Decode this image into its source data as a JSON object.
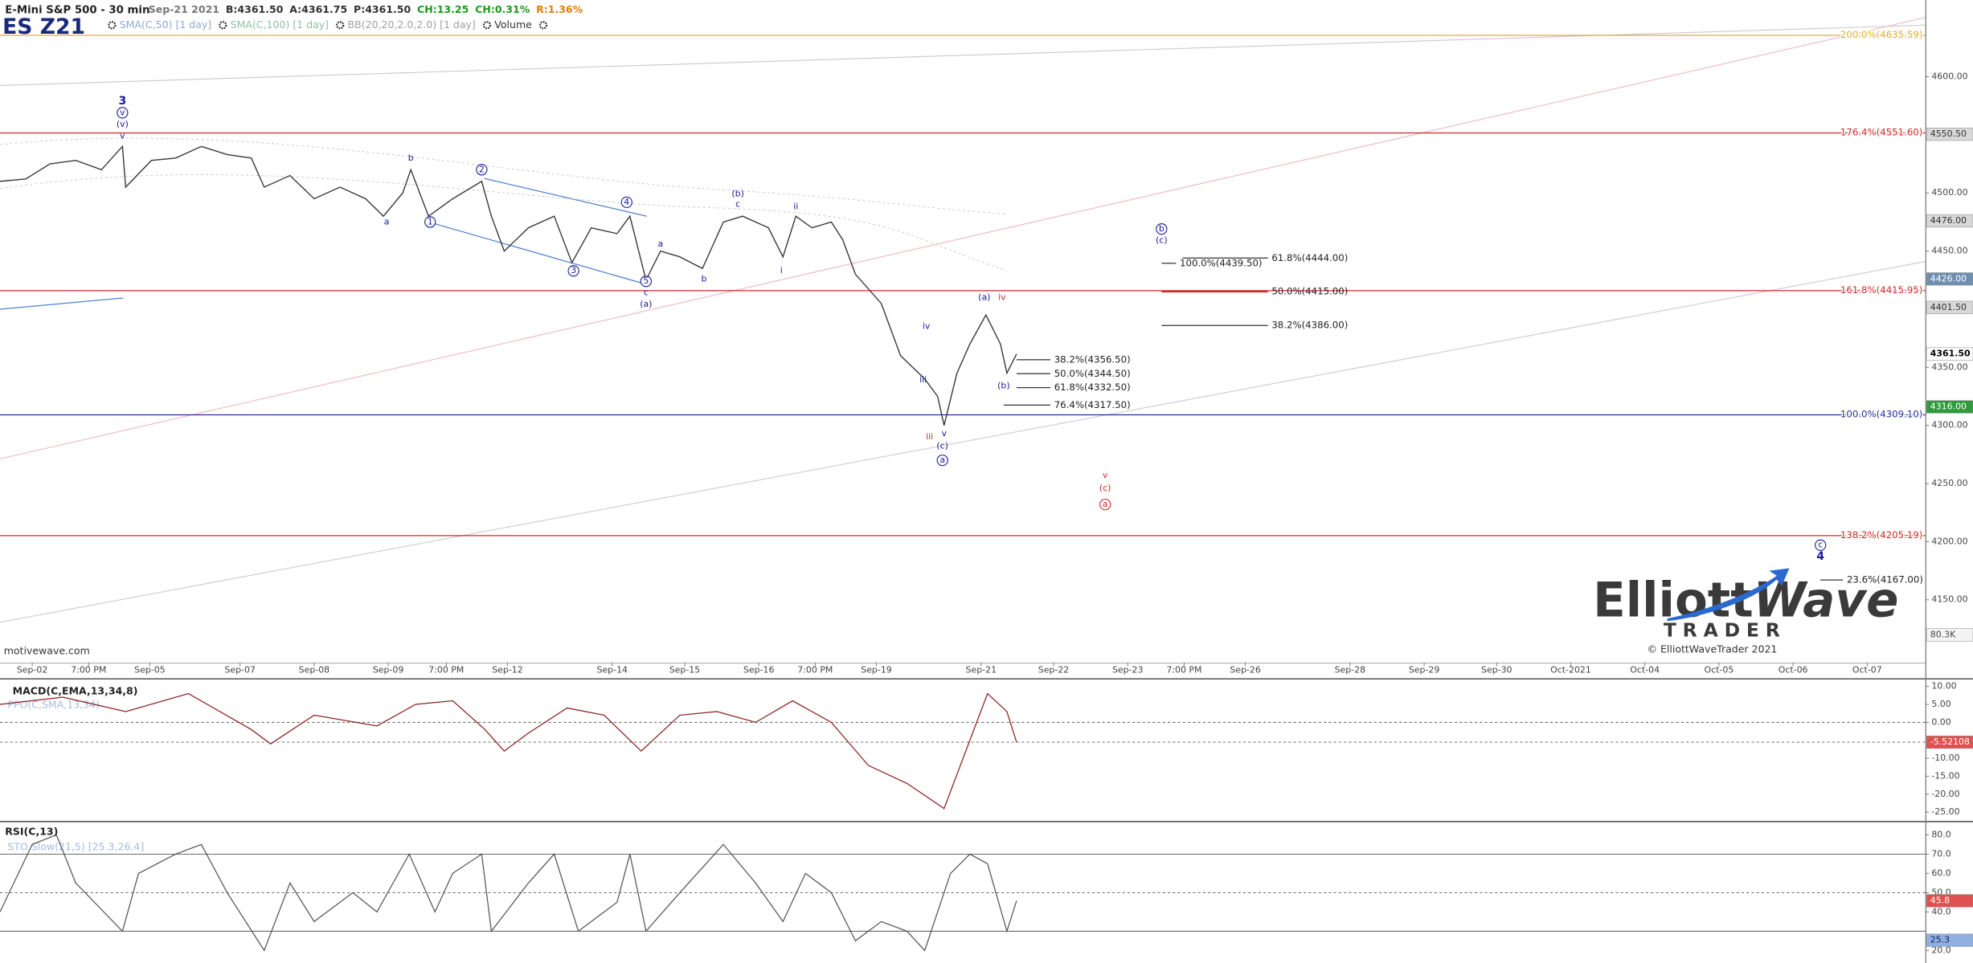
{
  "quote": [
    {
      "text": "Sep-21 2021",
      "color": "#777777"
    },
    {
      "text": "B:4361.50",
      "color": "#333333"
    },
    {
      "text": "A:4361.75",
      "color": "#333333"
    },
    {
      "text": "P:4361.50",
      "color": "#333333"
    },
    {
      "text": "CH:13.25",
      "color": "#1a9a1a"
    },
    {
      "text": "CH:0.31%",
      "color": "#1a9a1a"
    },
    {
      "text": "R:1.36%",
      "color": "#e08000"
    }
  ],
  "indicators": [
    {
      "text": "SMA(C,50) [1 day]",
      "color": "#8fa8d8"
    },
    {
      "text": "SMA(C,100) [1 day]",
      "color": "#8fc0a8"
    },
    {
      "text": "BB(20,20,2.0,2.0) [1 day]",
      "color": "#a0a0a0"
    },
    {
      "text": "Volume",
      "color": "#333333"
    }
  ],
  "source": "motivewave.com",
  "copyright": "© ElliottWaveTrader 2021",
  "logo": {
    "first": "Elliott",
    "second": "Wave",
    "third": "TRADER"
  },
  "chart_data": [
    {
      "type": "line",
      "title": "E-Mini S&P 500 - 30 min",
      "xlim": [
        0,
        1195
      ],
      "xticks": [
        {
          "value": 20,
          "label": "Sep-02"
        },
        {
          "value": 55,
          "label": "7:00 PM"
        },
        {
          "value": 93,
          "label": "Sep-05"
        },
        {
          "value": 149,
          "label": "Sep-07"
        },
        {
          "value": 195,
          "label": "Sep-08"
        },
        {
          "value": 241,
          "label": "Sep-09"
        },
        {
          "value": 277,
          "label": "7:00 PM"
        },
        {
          "value": 315,
          "label": "Sep-12"
        },
        {
          "value": 380,
          "label": "Sep-14"
        },
        {
          "value": 425,
          "label": "Sep-15"
        },
        {
          "value": 471,
          "label": "Sep-16"
        },
        {
          "value": 506,
          "label": "7:00 PM"
        },
        {
          "value": 544,
          "label": "Sep-19"
        },
        {
          "value": 609,
          "label": "Sep-21"
        },
        {
          "value": 654,
          "label": "Sep-22"
        },
        {
          "value": 700,
          "label": "Sep-23"
        },
        {
          "value": 735,
          "label": "7:00 PM"
        },
        {
          "value": 773,
          "label": "Sep-26"
        },
        {
          "value": 838,
          "label": "Sep-28"
        },
        {
          "value": 884,
          "label": "Sep-29"
        },
        {
          "value": 929,
          "label": "Sep-30"
        },
        {
          "value": 975,
          "label": "Oct-2021"
        },
        {
          "value": 1021,
          "label": "Oct-04"
        },
        {
          "value": 1067,
          "label": "Oct-05"
        },
        {
          "value": 1113,
          "label": "Oct-06"
        },
        {
          "value": 1159,
          "label": "Oct-07"
        }
      ],
      "ylim": [
        4096,
        4666
      ],
      "yticks": [
        {
          "value": 4150,
          "label": "4150.00"
        },
        {
          "value": 4200,
          "label": "4200.00"
        },
        {
          "value": 4250,
          "label": "4250.00"
        },
        {
          "value": 4300,
          "label": "4300.00"
        },
        {
          "value": 4350,
          "label": "4350.00"
        },
        {
          "value": 4450,
          "label": "4450.00"
        },
        {
          "value": 4500,
          "label": "4500.00"
        },
        {
          "value": 4600,
          "label": "4600.00"
        }
      ],
      "x": [
        0,
        16,
        31,
        47,
        63,
        76,
        78,
        94,
        109,
        125,
        141,
        156,
        164,
        180,
        195,
        211,
        227,
        238,
        250,
        255,
        266,
        281,
        299,
        305,
        313,
        328,
        344,
        355,
        367,
        383,
        391,
        401,
        410,
        422,
        436,
        449,
        461,
        477,
        486,
        494,
        504,
        516,
        523,
        531,
        547,
        559,
        574,
        582,
        586,
        594,
        602,
        612,
        621,
        625,
        631
      ],
      "series": [
        {
          "name": "ES Z21",
          "color": "#3a3a3a",
          "values": [
            4510,
            4512,
            4525,
            4528,
            4520,
            4540,
            4505,
            4528,
            4530,
            4540,
            4533,
            4530,
            4505,
            4515,
            4495,
            4505,
            4495,
            4480,
            4500,
            4520,
            4480,
            4495,
            4510,
            4480,
            4450,
            4470,
            4480,
            4440,
            4470,
            4465,
            4480,
            4425,
            4450,
            4445,
            4435,
            4475,
            4480,
            4470,
            4445,
            4480,
            4470,
            4475,
            4460,
            4430,
            4405,
            4360,
            4340,
            4325,
            4300,
            4345,
            4370,
            4395,
            4370,
            4345,
            4361.5
          ]
        }
      ],
      "levels": [
        {
          "label": "200.0%(4635.59)",
          "value": 4635.59,
          "color": "#e0b020"
        },
        {
          "label": "176.4%(4551.60)",
          "value": 4551.6,
          "color": "#d02828"
        },
        {
          "label": "161.8%(4415.95)",
          "value": 4415.95,
          "color": "#d02828"
        },
        {
          "label": "100.0%(4309.10)",
          "value": 4309.1,
          "color": "#2a2a9a"
        },
        {
          "label": "138.2%(4205.19)",
          "value": 4205.19,
          "color": "#d02828"
        }
      ],
      "fibs": [
        {
          "label": "38.2%(4356.50)",
          "value": 4356.5,
          "x": 631,
          "x2": 652,
          "color": "#333333"
        },
        {
          "label": "50.0%(4344.50)",
          "value": 4344.5,
          "x": 631,
          "x2": 652,
          "color": "#333333"
        },
        {
          "label": "61.8%(4332.50)",
          "value": 4332.5,
          "x": 631,
          "x2": 652,
          "color": "#333333"
        },
        {
          "label": "76.4%(4317.50)",
          "value": 4317.5,
          "x": 623,
          "x2": 652,
          "color": "#333333"
        },
        {
          "label": "100.0%(4439.50)",
          "value": 4439.5,
          "x": 721,
          "x2": 730,
          "color": "#333333"
        },
        {
          "label": "61.8%(4444.00)",
          "value": 4444,
          "x": 734,
          "x2": 787,
          "color": "#333333"
        },
        {
          "label": "50.0%(4415.00)",
          "value": 4415,
          "x": 721,
          "x2": 787,
          "color": "#d02828"
        },
        {
          "label": "38.2%(4386.00)",
          "value": 4386,
          "x": 721,
          "x2": 787,
          "color": "#333333"
        },
        {
          "label": "23.6%(4167.00)",
          "value": 4167,
          "x": 1130,
          "x2": 1144,
          "color": "#333333"
        }
      ],
      "annotations": [
        {
          "text": "3",
          "x": 76,
          "y": 4579,
          "color": "#1a1a9a",
          "bold": true
        },
        {
          "text": "v",
          "x": 76,
          "y": 4569,
          "color": "#1a1a9a",
          "circled": true
        },
        {
          "text": "(v)",
          "x": 76,
          "y": 4559,
          "color": "#1a1a9a"
        },
        {
          "text": "v",
          "x": 76,
          "y": 4549,
          "color": "#1a1a9a"
        },
        {
          "text": "b",
          "x": 255,
          "y": 4530,
          "color": "#1a1a9a"
        },
        {
          "text": "a",
          "x": 240,
          "y": 4475,
          "color": "#1a1a9a"
        },
        {
          "text": "1",
          "x": 267,
          "y": 4475,
          "color": "#1a1a9a",
          "circled": true
        },
        {
          "text": "2",
          "x": 299,
          "y": 4520,
          "color": "#1a1a9a",
          "circled": true
        },
        {
          "text": "3",
          "x": 356,
          "y": 4433,
          "color": "#1a1a9a",
          "circled": true
        },
        {
          "text": "4",
          "x": 389,
          "y": 4492,
          "color": "#1a1a9a",
          "circled": true
        },
        {
          "text": "5",
          "x": 401,
          "y": 4424,
          "color": "#1a1a9a",
          "circled": true
        },
        {
          "text": "c",
          "x": 401,
          "y": 4414,
          "color": "#1a1a9a"
        },
        {
          "text": "(a)",
          "x": 401,
          "y": 4404,
          "color": "#1a1a9a"
        },
        {
          "text": "a",
          "x": 410,
          "y": 4456,
          "color": "#1a1a9a"
        },
        {
          "text": "b",
          "x": 437,
          "y": 4426,
          "color": "#1a1a9a"
        },
        {
          "text": "(b)",
          "x": 458,
          "y": 4499,
          "color": "#1a1a9a"
        },
        {
          "text": "c",
          "x": 458,
          "y": 4490,
          "color": "#1a1a9a"
        },
        {
          "text": "ii",
          "x": 494,
          "y": 4488,
          "color": "#1a1a9a"
        },
        {
          "text": "i",
          "x": 485,
          "y": 4433,
          "color": "#1a1a9a"
        },
        {
          "text": "iv",
          "x": 575,
          "y": 4385,
          "color": "#1a1a9a"
        },
        {
          "text": "iii",
          "x": 573,
          "y": 4339,
          "color": "#1a1a9a"
        },
        {
          "text": "iii",
          "x": 577,
          "y": 4290,
          "color": "#d02828"
        },
        {
          "text": "v",
          "x": 586,
          "y": 4293,
          "color": "#1a1a9a"
        },
        {
          "text": "(c)",
          "x": 585,
          "y": 4282,
          "color": "#1a1a9a"
        },
        {
          "text": "a",
          "x": 585,
          "y": 4270,
          "color": "#1a1a9a",
          "circled": true
        },
        {
          "text": "(a)",
          "x": 611,
          "y": 4410,
          "color": "#1a1a9a"
        },
        {
          "text": "iv",
          "x": 622,
          "y": 4410,
          "color": "#d02828"
        },
        {
          "text": "(b)",
          "x": 623,
          "y": 4334,
          "color": "#1a1a9a"
        },
        {
          "text": "b",
          "x": 721,
          "y": 4469,
          "color": "#1a1a9a",
          "circled": true
        },
        {
          "text": "(c)",
          "x": 721,
          "y": 4459,
          "color": "#1a1a9a"
        },
        {
          "text": "v",
          "x": 686,
          "y": 4257,
          "color": "#d02828"
        },
        {
          "text": "(c)",
          "x": 686,
          "y": 4246,
          "color": "#d02828"
        },
        {
          "text": "a",
          "x": 686,
          "y": 4232,
          "color": "#d02828",
          "circled": true
        },
        {
          "text": "c",
          "x": 1130,
          "y": 4197,
          "color": "#1a1a9a",
          "circled": true
        },
        {
          "text": "4",
          "x": 1130,
          "y": 4187,
          "color": "#1a1a9a",
          "bold": true
        }
      ],
      "tags": [
        {
          "label": "4550.50",
          "value": 4550.5,
          "bg": "#d8d8d8",
          "fg": "#333333"
        },
        {
          "label": "4476.00",
          "value": 4476,
          "bg": "#d8d8d8",
          "fg": "#333333"
        },
        {
          "label": "4426.00",
          "value": 4426,
          "bg": "#6f8fb0",
          "fg": "#ffffff"
        },
        {
          "label": "4401.50",
          "value": 4401.5,
          "bg": "#d8d8d8",
          "fg": "#333333"
        },
        {
          "label": "4361.50",
          "value": 4361.5,
          "bg": "#ffffff",
          "fg": "#000000"
        },
        {
          "label": "4316.00",
          "value": 4316,
          "bg": "#2e9a3a",
          "fg": "#ffffff"
        }
      ],
      "volume_tag": "80.3K"
    },
    {
      "type": "line",
      "title": "MACD(C,EMA,13,34,8)",
      "subtitle": "PPO(C,SMA,13,34)",
      "ylim": [
        -27.1,
        11.75
      ],
      "yticks": [
        {
          "value": 10,
          "label": "10.00"
        },
        {
          "value": 5,
          "label": "5.00"
        },
        {
          "value": 0,
          "label": "0.00"
        },
        {
          "value": -10,
          "label": "-10.00"
        },
        {
          "value": -15,
          "label": "-15.00"
        },
        {
          "value": -20,
          "label": "-20.00"
        },
        {
          "value": -25,
          "label": "-25.00"
        }
      ],
      "levels": [
        0
      ],
      "x": [
        0,
        39,
        78,
        117,
        156,
        168,
        195,
        234,
        258,
        281,
        301,
        313,
        328,
        352,
        375,
        398,
        422,
        445,
        469,
        492,
        516,
        539,
        563,
        586,
        602,
        613,
        625,
        631
      ],
      "values": [
        5,
        7,
        3,
        8,
        -2,
        -6,
        2,
        -1,
        5,
        6,
        -2,
        -8,
        -3,
        4,
        2,
        -8,
        2,
        3,
        0,
        6,
        0,
        -12,
        -17,
        -24,
        -5,
        8,
        3,
        -5.52
      ],
      "color": "#8b2020",
      "tags": [
        {
          "label": "-5.52108",
          "value": -5.52108,
          "bg": "#e05050",
          "fg": "#ffffff"
        }
      ]
    },
    {
      "type": "line",
      "title": "RSI(C,13)",
      "subtitle": "STO Slow(21,5) [25.3,26.4]",
      "ylim": [
        13.5,
        85.9
      ],
      "yticks": [
        {
          "value": 80,
          "label": "80.0"
        },
        {
          "value": 70,
          "label": "70.0"
        },
        {
          "value": 60,
          "label": "60.0"
        },
        {
          "value": 50,
          "label": "50.0"
        },
        {
          "value": 40,
          "label": "40.0"
        },
        {
          "value": 20,
          "label": "20.0"
        }
      ],
      "levels": [
        70,
        50,
        30
      ],
      "x": [
        0,
        20,
        35,
        47,
        76,
        86,
        109,
        125,
        141,
        164,
        180,
        195,
        219,
        234,
        254,
        270,
        281,
        299,
        305,
        328,
        344,
        359,
        383,
        391,
        401,
        422,
        449,
        469,
        486,
        500,
        516,
        531,
        547,
        563,
        574,
        590,
        602,
        613,
        625,
        631
      ],
      "values": [
        40,
        75,
        80,
        55,
        30,
        60,
        70,
        75,
        50,
        20,
        55,
        35,
        50,
        40,
        70,
        40,
        60,
        70,
        30,
        55,
        70,
        30,
        45,
        70,
        30,
        50,
        75,
        55,
        35,
        60,
        50,
        25,
        35,
        30,
        20,
        60,
        70,
        65,
        30,
        45.8
      ],
      "color": "#555555",
      "tags": [
        {
          "label": "45.8",
          "value": 45.8,
          "bg": "#e05050",
          "fg": "#ffffff"
        },
        {
          "label": "25.3",
          "value": 25.3,
          "bg": "#8fb0e0",
          "fg": "#1a1a5a"
        }
      ]
    }
  ]
}
